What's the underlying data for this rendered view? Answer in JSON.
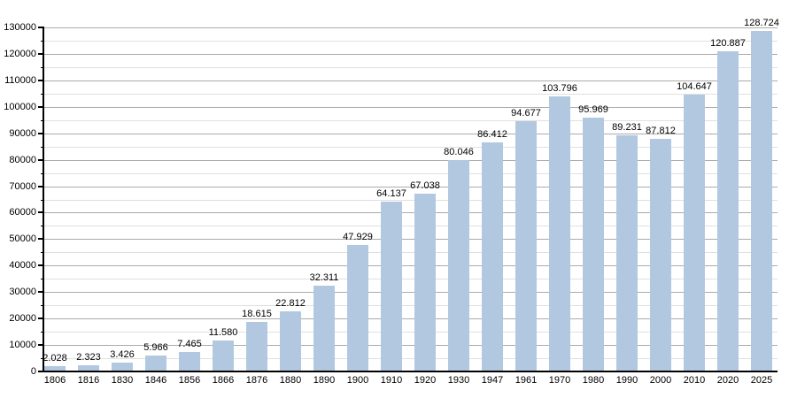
{
  "chart_data": {
    "type": "bar",
    "title": "",
    "xlabel": "",
    "ylabel": "",
    "categories": [
      "1806",
      "1816",
      "1830",
      "1846",
      "1856",
      "1866",
      "1876",
      "1880",
      "1890",
      "1900",
      "1910",
      "1920",
      "1930",
      "1947",
      "1961",
      "1970",
      "1980",
      "1990",
      "2000",
      "2010",
      "2020",
      "2025"
    ],
    "values": [
      2028,
      2323,
      3426,
      5966,
      7465,
      11580,
      18615,
      22812,
      32311,
      47929,
      64137,
      67038,
      80046,
      86412,
      94677,
      103796,
      95969,
      89231,
      87812,
      104647,
      120887,
      128724
    ],
    "value_labels": [
      "2.028",
      "2.323",
      "3.426",
      "5.966",
      "7.465",
      "11.580",
      "18.615",
      "22.812",
      "32.311",
      "47.929",
      "64.137",
      "67.038",
      "80.046",
      "86.412",
      "94.677",
      "103.796",
      "95.969",
      "89.231",
      "87.812",
      "104.647",
      "120.887",
      "128.724"
    ],
    "ylim": [
      0,
      130000
    ],
    "y_tick_step": 10000,
    "y_minor_tick_step": 5000,
    "y_tick_labels": [
      "0",
      "10000",
      "20000",
      "30000",
      "40000",
      "50000",
      "60000",
      "70000",
      "80000",
      "90000",
      "100000",
      "110000",
      "120000",
      "130000"
    ],
    "grid": "major and minor horizontal gridlines",
    "legend": false,
    "colors": {
      "bar_fill": "#b2c8e0",
      "grid_major": "#ababab",
      "grid_minor": "#e0e0e0",
      "axis": "#000000",
      "text": "#000000",
      "background": "#ffffff"
    }
  }
}
